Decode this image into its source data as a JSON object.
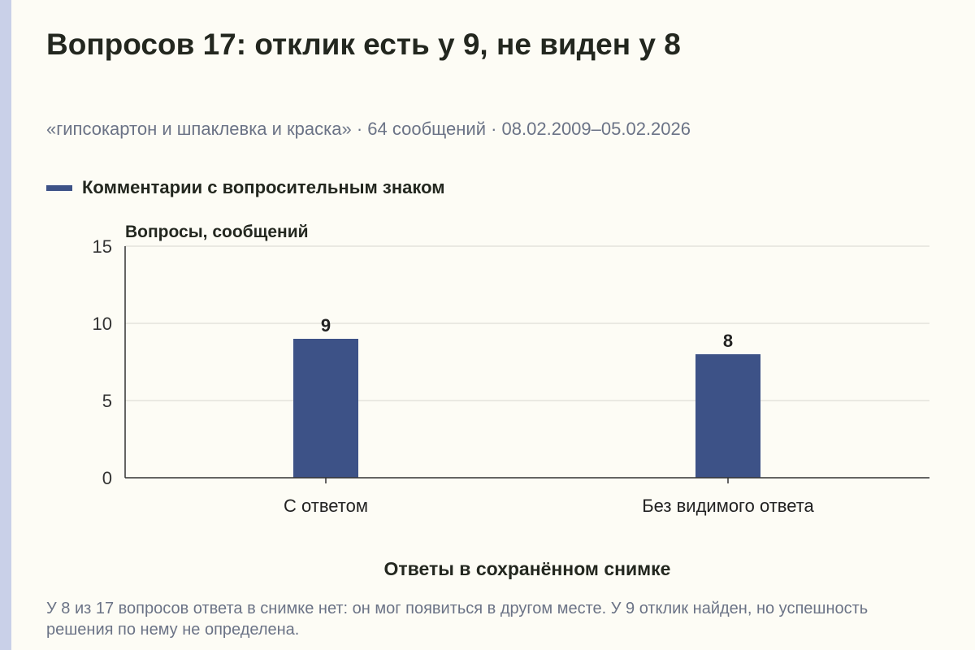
{
  "header": {
    "title": "Вопросов 17: отклик есть у 9, не виден у 8",
    "subtitle": "«гипсокартон и шпаклевка и краска» · 64 сообщений · 08.02.2009–05.02.2026"
  },
  "legend": {
    "label": "Комментарии с вопросительным знаком",
    "color": "#3d5287"
  },
  "note": "У 8 из 17 вопросов ответа в снимке нет: он мог появиться в другом месте. У 9 отклик найден, но успешность решения по нему не определена.",
  "chart_data": {
    "type": "bar",
    "categories": [
      "С ответом",
      "Без видимого ответа"
    ],
    "series": [
      {
        "name": "Комментарии с вопросительным знаком",
        "values": [
          9,
          8
        ],
        "color": "#3d5287"
      }
    ],
    "data_labels": [
      "9",
      "8"
    ],
    "ylabel": "Вопросы, сообщений",
    "xlabel": "Ответы в сохранённом снимке",
    "ylim": [
      0,
      15
    ],
    "yticks": [
      0,
      5,
      10,
      15
    ],
    "grid": true,
    "legend_position": "top-left"
  }
}
